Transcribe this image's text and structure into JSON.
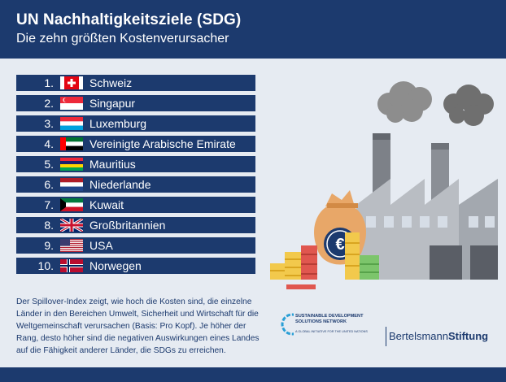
{
  "header": {
    "title": "UN Nachhaltigkeitsziele (SDG)",
    "subtitle": "Die zehn größten Kostenverursacher"
  },
  "ranking": [
    {
      "rank": "1.",
      "country": "Schweiz",
      "flag": "switzerland"
    },
    {
      "rank": "2.",
      "country": "Singapur",
      "flag": "singapore"
    },
    {
      "rank": "3.",
      "country": "Luxemburg",
      "flag": "luxembourg"
    },
    {
      "rank": "4.",
      "country": "Vereinigte Arabische Emirate",
      "flag": "uae"
    },
    {
      "rank": "5.",
      "country": "Mauritius",
      "flag": "mauritius"
    },
    {
      "rank": "6.",
      "country": "Niederlande",
      "flag": "netherlands"
    },
    {
      "rank": "7.",
      "country": "Kuwait",
      "flag": "kuwait"
    },
    {
      "rank": "8.",
      "country": "Großbritannien",
      "flag": "united-kingdom"
    },
    {
      "rank": "9.",
      "country": "USA",
      "flag": "usa"
    },
    {
      "rank": "10.",
      "country": "Norwegen",
      "flag": "norway"
    }
  ],
  "footnote": "Der Spillover-Index zeigt, wie hoch die Kosten sind, die einzelne Länder in den Bereichen Umwelt, Sicherheit und Wirtschaft für die Weltgemeinschaft verursachen (Basis: Pro Kopf). Je höher der Rang, desto höher sind die negativen Auswirkungen eines Landes auf die Fähigkeit anderer Länder, die SDGs zu erreichen.",
  "logos": {
    "sdsn_line1": "SUSTAINABLE DEVELOPMENT SOLUTIONS NETWORK",
    "sdsn_line2": "A GLOBAL INITIATIVE FOR THE UNITED NATIONS",
    "bertelsmann_regular": "Bertelsmann",
    "bertelsmann_bold": "Stiftung"
  },
  "illustration": {
    "money_bag_symbol": "€"
  },
  "colors": {
    "navy": "#1c3a6e",
    "background": "#e6ebf2"
  }
}
